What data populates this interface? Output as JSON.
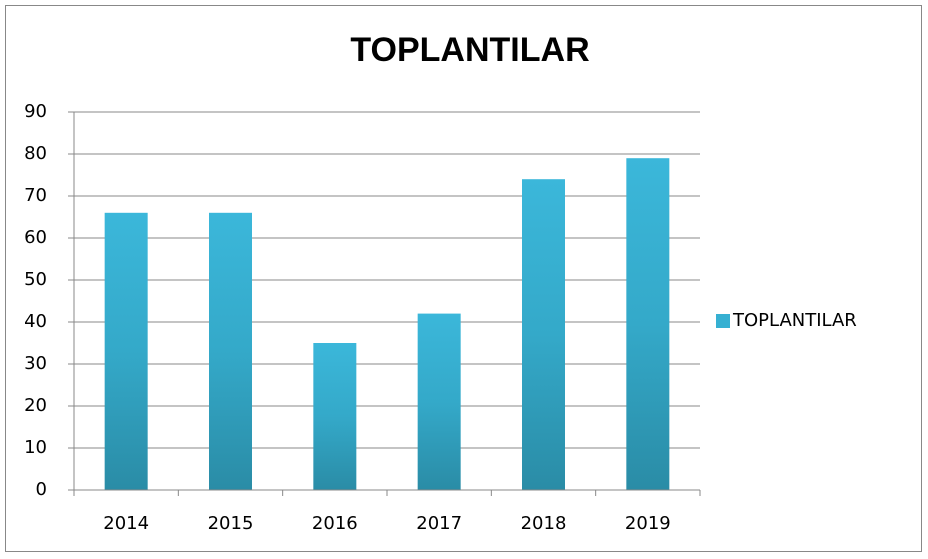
{
  "chart_data": {
    "type": "bar",
    "title": "TOPLANTILAR",
    "categories": [
      "2014",
      "2015",
      "2016",
      "2017",
      "2018",
      "2019"
    ],
    "series": [
      {
        "name": "TOPLANTILAR",
        "color": "#36b0d2",
        "values": [
          66,
          66,
          35,
          42,
          74,
          79
        ]
      }
    ],
    "ylim": [
      0,
      90
    ],
    "yticks": [
      0,
      10,
      20,
      30,
      40,
      50,
      60,
      70,
      80,
      90
    ],
    "grid": true,
    "legend": "right"
  }
}
